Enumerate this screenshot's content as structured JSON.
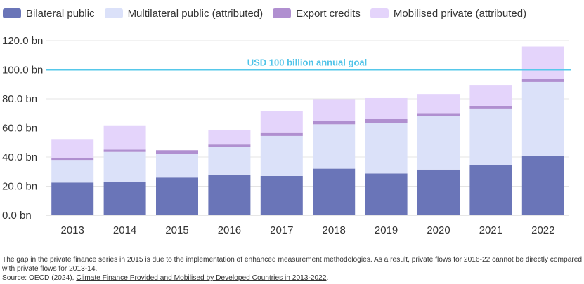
{
  "chart_data": {
    "type": "bar",
    "stacked": true,
    "categories": [
      "2013",
      "2014",
      "2015",
      "2016",
      "2017",
      "2018",
      "2019",
      "2020",
      "2021",
      "2022"
    ],
    "series": [
      {
        "name": "Bilateral public",
        "color": "#6a75b8",
        "values": [
          22.5,
          23.1,
          25.9,
          28.0,
          27.0,
          32.0,
          28.7,
          31.4,
          34.6,
          41.0
        ]
      },
      {
        "name": "Multilateral public (attributed)",
        "color": "#dbe1f9",
        "values": [
          15.5,
          20.4,
          16.2,
          19.0,
          27.5,
          30.5,
          34.8,
          36.9,
          38.7,
          50.6
        ]
      },
      {
        "name": "Export credits",
        "color": "#b08fd0",
        "values": [
          1.6,
          1.6,
          2.6,
          1.6,
          2.5,
          2.5,
          2.6,
          1.9,
          1.9,
          2.3
        ]
      },
      {
        "name": "Mobilised private (attributed)",
        "color": "#e4d4fb",
        "values": [
          12.8,
          16.7,
          0,
          9.8,
          14.7,
          14.8,
          14.4,
          13.1,
          14.4,
          22.0
        ]
      }
    ],
    "y_ticks": [
      "0.0 bn",
      "20.0 bn",
      "40.0 bn",
      "60.0 bn",
      "80.0 bn",
      "100.0 bn",
      "120.0 bn"
    ],
    "ylim": [
      0,
      120
    ],
    "grid": true,
    "legend": "top-left",
    "reference_line": {
      "value": 100,
      "label": "USD 100 billion annual goal",
      "color": "#56c8ea"
    }
  },
  "footnote": {
    "line1": "The gap in the private finance series in 2015 is due to the implementation of enhanced measurement methodologies. As a result, private flows for 2016-22 cannot be directly compared with private flows for 2013-14.",
    "source_prefix": "Source: OECD (2024), ",
    "source_link": "Climate Finance Provided and Mobilised by Developed Countries in 2013-2022",
    "source_suffix": "."
  }
}
